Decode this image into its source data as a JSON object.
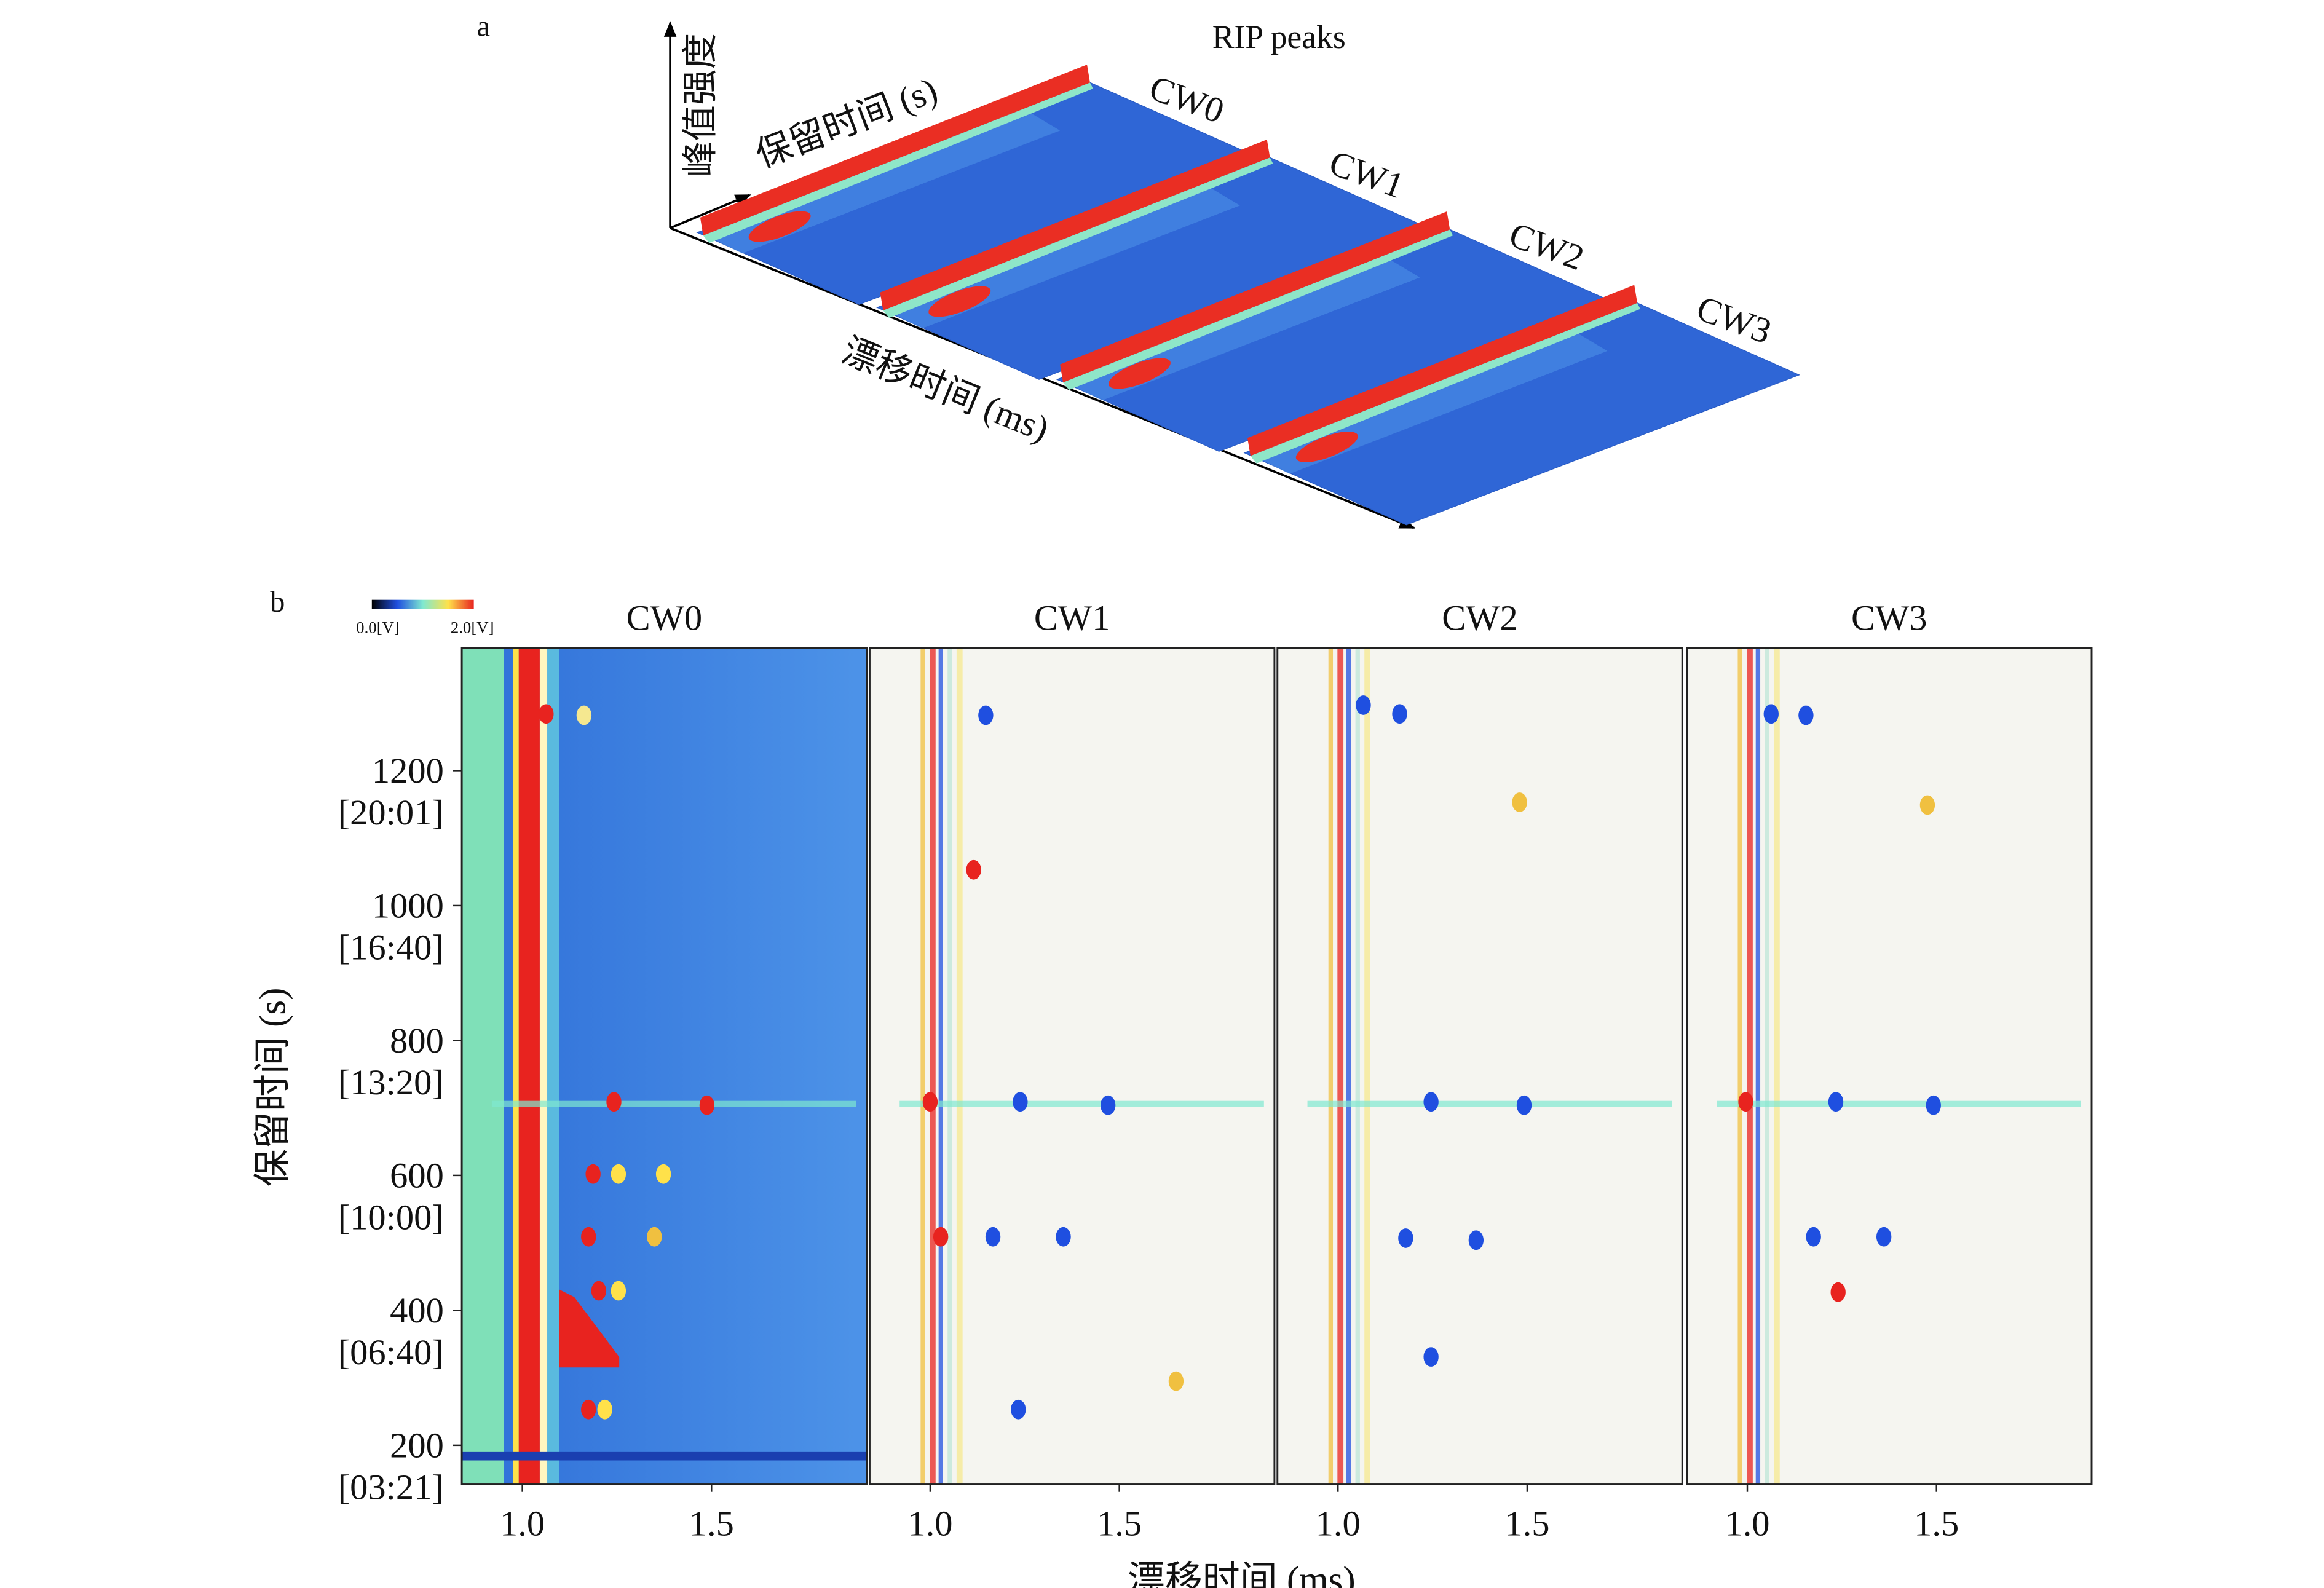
{
  "figure_a": {
    "panel_label": "a",
    "title": "RIP peaks",
    "z_label": "峰值强度",
    "y_label": "保留时间 (s)",
    "x_label": "漂移时间 (ms)",
    "samples": [
      "CW0",
      "CW1",
      "CW2",
      "CW3"
    ]
  },
  "chart_data": {
    "type": "heatmap",
    "panel_label": "b",
    "xlabel": "漂移时间 (ms)",
    "ylabel": "保留时间 (s)",
    "xlim": [
      0.84,
      1.91
    ],
    "xticks": [
      {
        "value": 1,
        "label": "1.0"
      },
      {
        "value": 1.5,
        "label": "1.5"
      }
    ],
    "ylim": [
      142,
      1382
    ],
    "yticks": [
      200,
      400,
      600,
      800,
      1000,
      1200
    ],
    "ytick_times": [
      "[03:21]",
      "[06:40]",
      "[10:00]",
      "[13:20]",
      "[16:40]",
      "[20:01]"
    ],
    "colorbar": {
      "labels": [
        "0.0[V]",
        "2.0[V]"
      ],
      "colors": [
        "#000000",
        "#1f4fe0",
        "#7fe8d0",
        "#ffe14a",
        "#e8231f"
      ]
    },
    "panels": [
      {
        "title": "CW0",
        "background": "#3a7ee0",
        "peaks": [
          {
            "x": 1.242,
            "y": 709,
            "color": "#e8231f"
          },
          {
            "x": 1.488,
            "y": 704,
            "color": "#e8231f"
          },
          {
            "x": 1.175,
            "y": 509,
            "color": "#e8231f"
          },
          {
            "x": 1.349,
            "y": 509,
            "color": "#f0c040"
          },
          {
            "x": 1.187,
            "y": 602,
            "color": "#e8231f"
          },
          {
            "x": 1.254,
            "y": 602,
            "color": "#ffe14a"
          },
          {
            "x": 1.373,
            "y": 602,
            "color": "#ffe14a"
          },
          {
            "x": 1.063,
            "y": 1284,
            "color": "#e8231f"
          },
          {
            "x": 1.163,
            "y": 1282,
            "color": "#f5e890"
          },
          {
            "x": 1.202,
            "y": 429,
            "color": "#e8231f"
          },
          {
            "x": 1.254,
            "y": 429,
            "color": "#ffe14a"
          },
          {
            "x": 1.218,
            "y": 253,
            "color": "#ffe14a"
          },
          {
            "x": 1.175,
            "y": 253,
            "color": "#e8231f"
          }
        ]
      },
      {
        "title": "CW1",
        "background": "#f5f5f0",
        "peaks": [
          {
            "x": 1.147,
            "y": 1282,
            "color": "#1f4fe0"
          },
          {
            "x": 1.238,
            "y": 709,
            "color": "#1f4fe0"
          },
          {
            "x": 1.47,
            "y": 704,
            "color": "#1f4fe0"
          },
          {
            "x": 1.166,
            "y": 509,
            "color": "#1f4fe0"
          },
          {
            "x": 1.352,
            "y": 509,
            "color": "#1f4fe0"
          },
          {
            "x": 1.115,
            "y": 1053,
            "color": "#e8231f"
          },
          {
            "x": 1.0,
            "y": 709,
            "color": "#e8231f"
          },
          {
            "x": 1.028,
            "y": 509,
            "color": "#e8231f"
          },
          {
            "x": 1.233,
            "y": 253,
            "color": "#1f4fe0"
          },
          {
            "x": 1.65,
            "y": 295,
            "color": "#f0c040"
          }
        ]
      },
      {
        "title": "CW2",
        "background": "#f5f5f0",
        "peaks": [
          {
            "x": 1.067,
            "y": 1297,
            "color": "#1f4fe0"
          },
          {
            "x": 1.163,
            "y": 1284,
            "color": "#1f4fe0"
          },
          {
            "x": 1.246,
            "y": 709,
            "color": "#1f4fe0"
          },
          {
            "x": 1.492,
            "y": 704,
            "color": "#1f4fe0"
          },
          {
            "x": 1.179,
            "y": 507,
            "color": "#1f4fe0"
          },
          {
            "x": 1.365,
            "y": 504,
            "color": "#1f4fe0"
          },
          {
            "x": 1.246,
            "y": 331,
            "color": "#1f4fe0"
          },
          {
            "x": 1.48,
            "y": 1153,
            "color": "#f0c040"
          }
        ]
      },
      {
        "title": "CW3",
        "background": "#f5f5f0",
        "peaks": [
          {
            "x": 1.063,
            "y": 1284,
            "color": "#1f4fe0"
          },
          {
            "x": 1.155,
            "y": 1282,
            "color": "#1f4fe0"
          },
          {
            "x": 1.234,
            "y": 709,
            "color": "#1f4fe0"
          },
          {
            "x": 1.492,
            "y": 704,
            "color": "#1f4fe0"
          },
          {
            "x": 1.175,
            "y": 509,
            "color": "#1f4fe0"
          },
          {
            "x": 1.361,
            "y": 509,
            "color": "#1f4fe0"
          },
          {
            "x": 0.996,
            "y": 709,
            "color": "#e8231f"
          },
          {
            "x": 1.476,
            "y": 1149,
            "color": "#f0c040"
          },
          {
            "x": 1.24,
            "y": 427,
            "color": "#e8231f"
          }
        ]
      }
    ]
  }
}
